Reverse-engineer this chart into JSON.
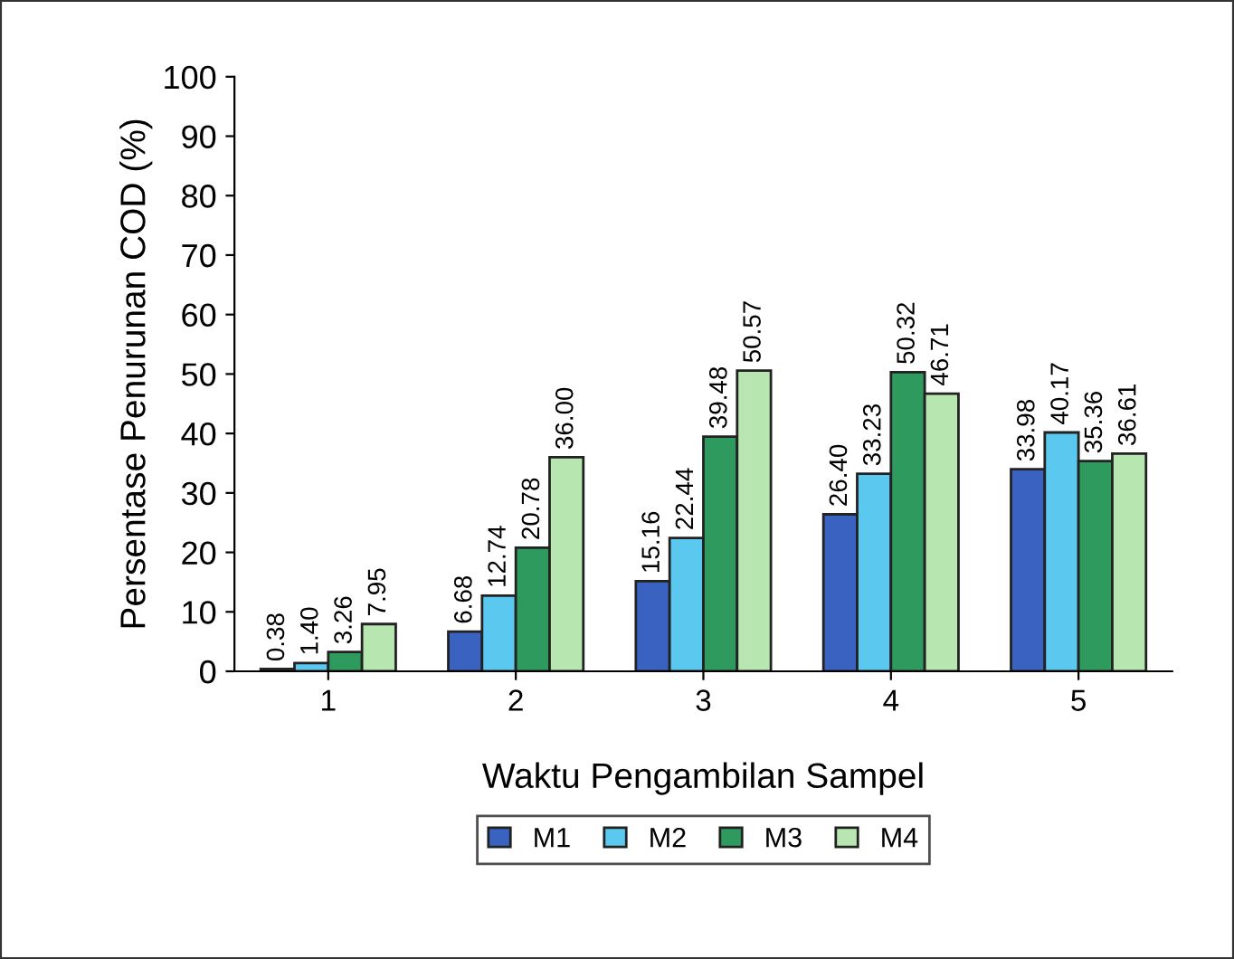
{
  "chart_data": {
    "type": "bar",
    "xlabel": "Waktu Pengambilan Sampel",
    "ylabel": "Persentase Penurunan COD (%)",
    "categories": [
      "1",
      "2",
      "3",
      "4",
      "5"
    ],
    "series": [
      {
        "name": "M1",
        "color": "#3a62c0",
        "values": [
          0.38,
          6.68,
          15.16,
          26.4,
          33.98
        ],
        "value_labels": [
          "0.38",
          "6.68",
          "15.16",
          "26.40",
          "33.98"
        ]
      },
      {
        "name": "M2",
        "color": "#5bc8f0",
        "values": [
          1.4,
          12.74,
          22.44,
          33.23,
          40.17
        ],
        "value_labels": [
          "1.40",
          "12.74",
          "22.44",
          "33.23",
          "40.17"
        ]
      },
      {
        "name": "M3",
        "color": "#2e9a5e",
        "values": [
          3.26,
          20.78,
          39.48,
          50.32,
          35.36
        ],
        "value_labels": [
          "3.26",
          "20.78",
          "39.48",
          "50.32",
          "35.36"
        ]
      },
      {
        "name": "M4",
        "color": "#b8e6b0",
        "values": [
          7.95,
          36.0,
          50.57,
          46.71,
          36.61
        ],
        "value_labels": [
          "7.95",
          "36.00",
          "50.57",
          "46.71",
          "36.61"
        ]
      }
    ],
    "ylim": [
      0,
      100
    ],
    "yticks": [
      0,
      10,
      20,
      30,
      40,
      50,
      60,
      70,
      80,
      90,
      100
    ],
    "grid": false,
    "legend": "bottom"
  }
}
